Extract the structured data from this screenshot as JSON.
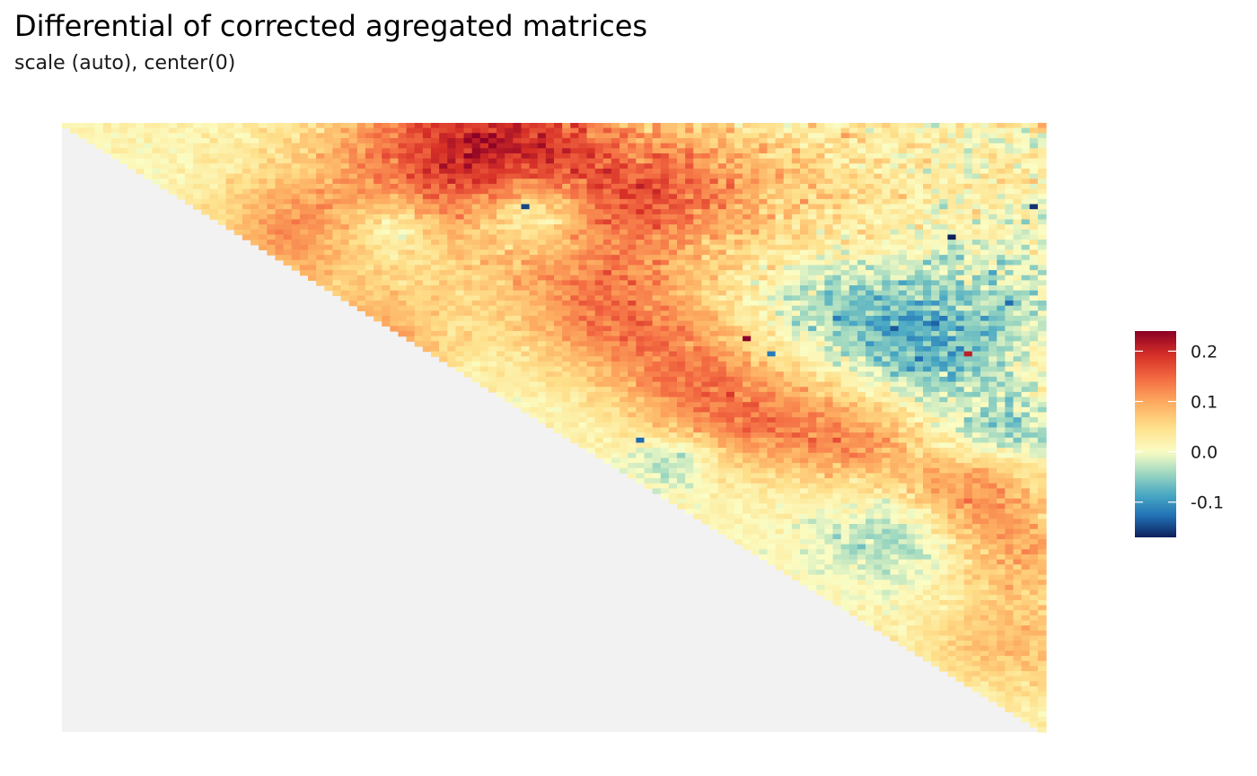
{
  "chart_data": {
    "type": "heatmap",
    "title": "Differential of corrected agregated matrices",
    "subtitle": "scale (auto), center(0)",
    "xlabel": "",
    "ylabel": "",
    "grid": false,
    "legend_placement": "right",
    "matrix_shape": "upper-triangle",
    "colorbar": {
      "min": -0.17,
      "max": 0.24,
      "center": 0,
      "ticks": [
        0.2,
        0.1,
        0.0,
        -0.1
      ],
      "tick_labels": [
        "0.2",
        "0.1",
        "0.0",
        "-0.1"
      ],
      "colors": [
        "#0d1f5c",
        "#2171b5",
        "#4aa9c4",
        "#9ed8c0",
        "#fbfdc4",
        "#fee08b",
        "#fdae61",
        "#f46d43",
        "#d73027",
        "#8b0026"
      ]
    },
    "colors": {
      "masked": "#f2f2f2",
      "background": "#ffffff"
    },
    "hotspots": [
      {
        "i": 42,
        "j": 83,
        "value": 0.24
      },
      {
        "i": 45,
        "j": 110,
        "value": 0.21
      },
      {
        "i": 22,
        "j": 108,
        "value": -0.17
      },
      {
        "i": 16,
        "j": 118,
        "value": -0.16
      },
      {
        "i": 16,
        "j": 56,
        "value": -0.15
      },
      {
        "i": 40,
        "j": 101,
        "value": -0.14
      },
      {
        "i": 35,
        "j": 115,
        "value": -0.13
      },
      {
        "i": 62,
        "j": 70,
        "value": -0.13
      },
      {
        "i": 45,
        "j": 86,
        "value": -0.12
      },
      {
        "i": 38,
        "j": 94,
        "value": -0.12
      },
      {
        "i": 45,
        "j": 72,
        "value": 0.14
      },
      {
        "i": 37,
        "j": 63,
        "value": 0.12
      }
    ]
  }
}
